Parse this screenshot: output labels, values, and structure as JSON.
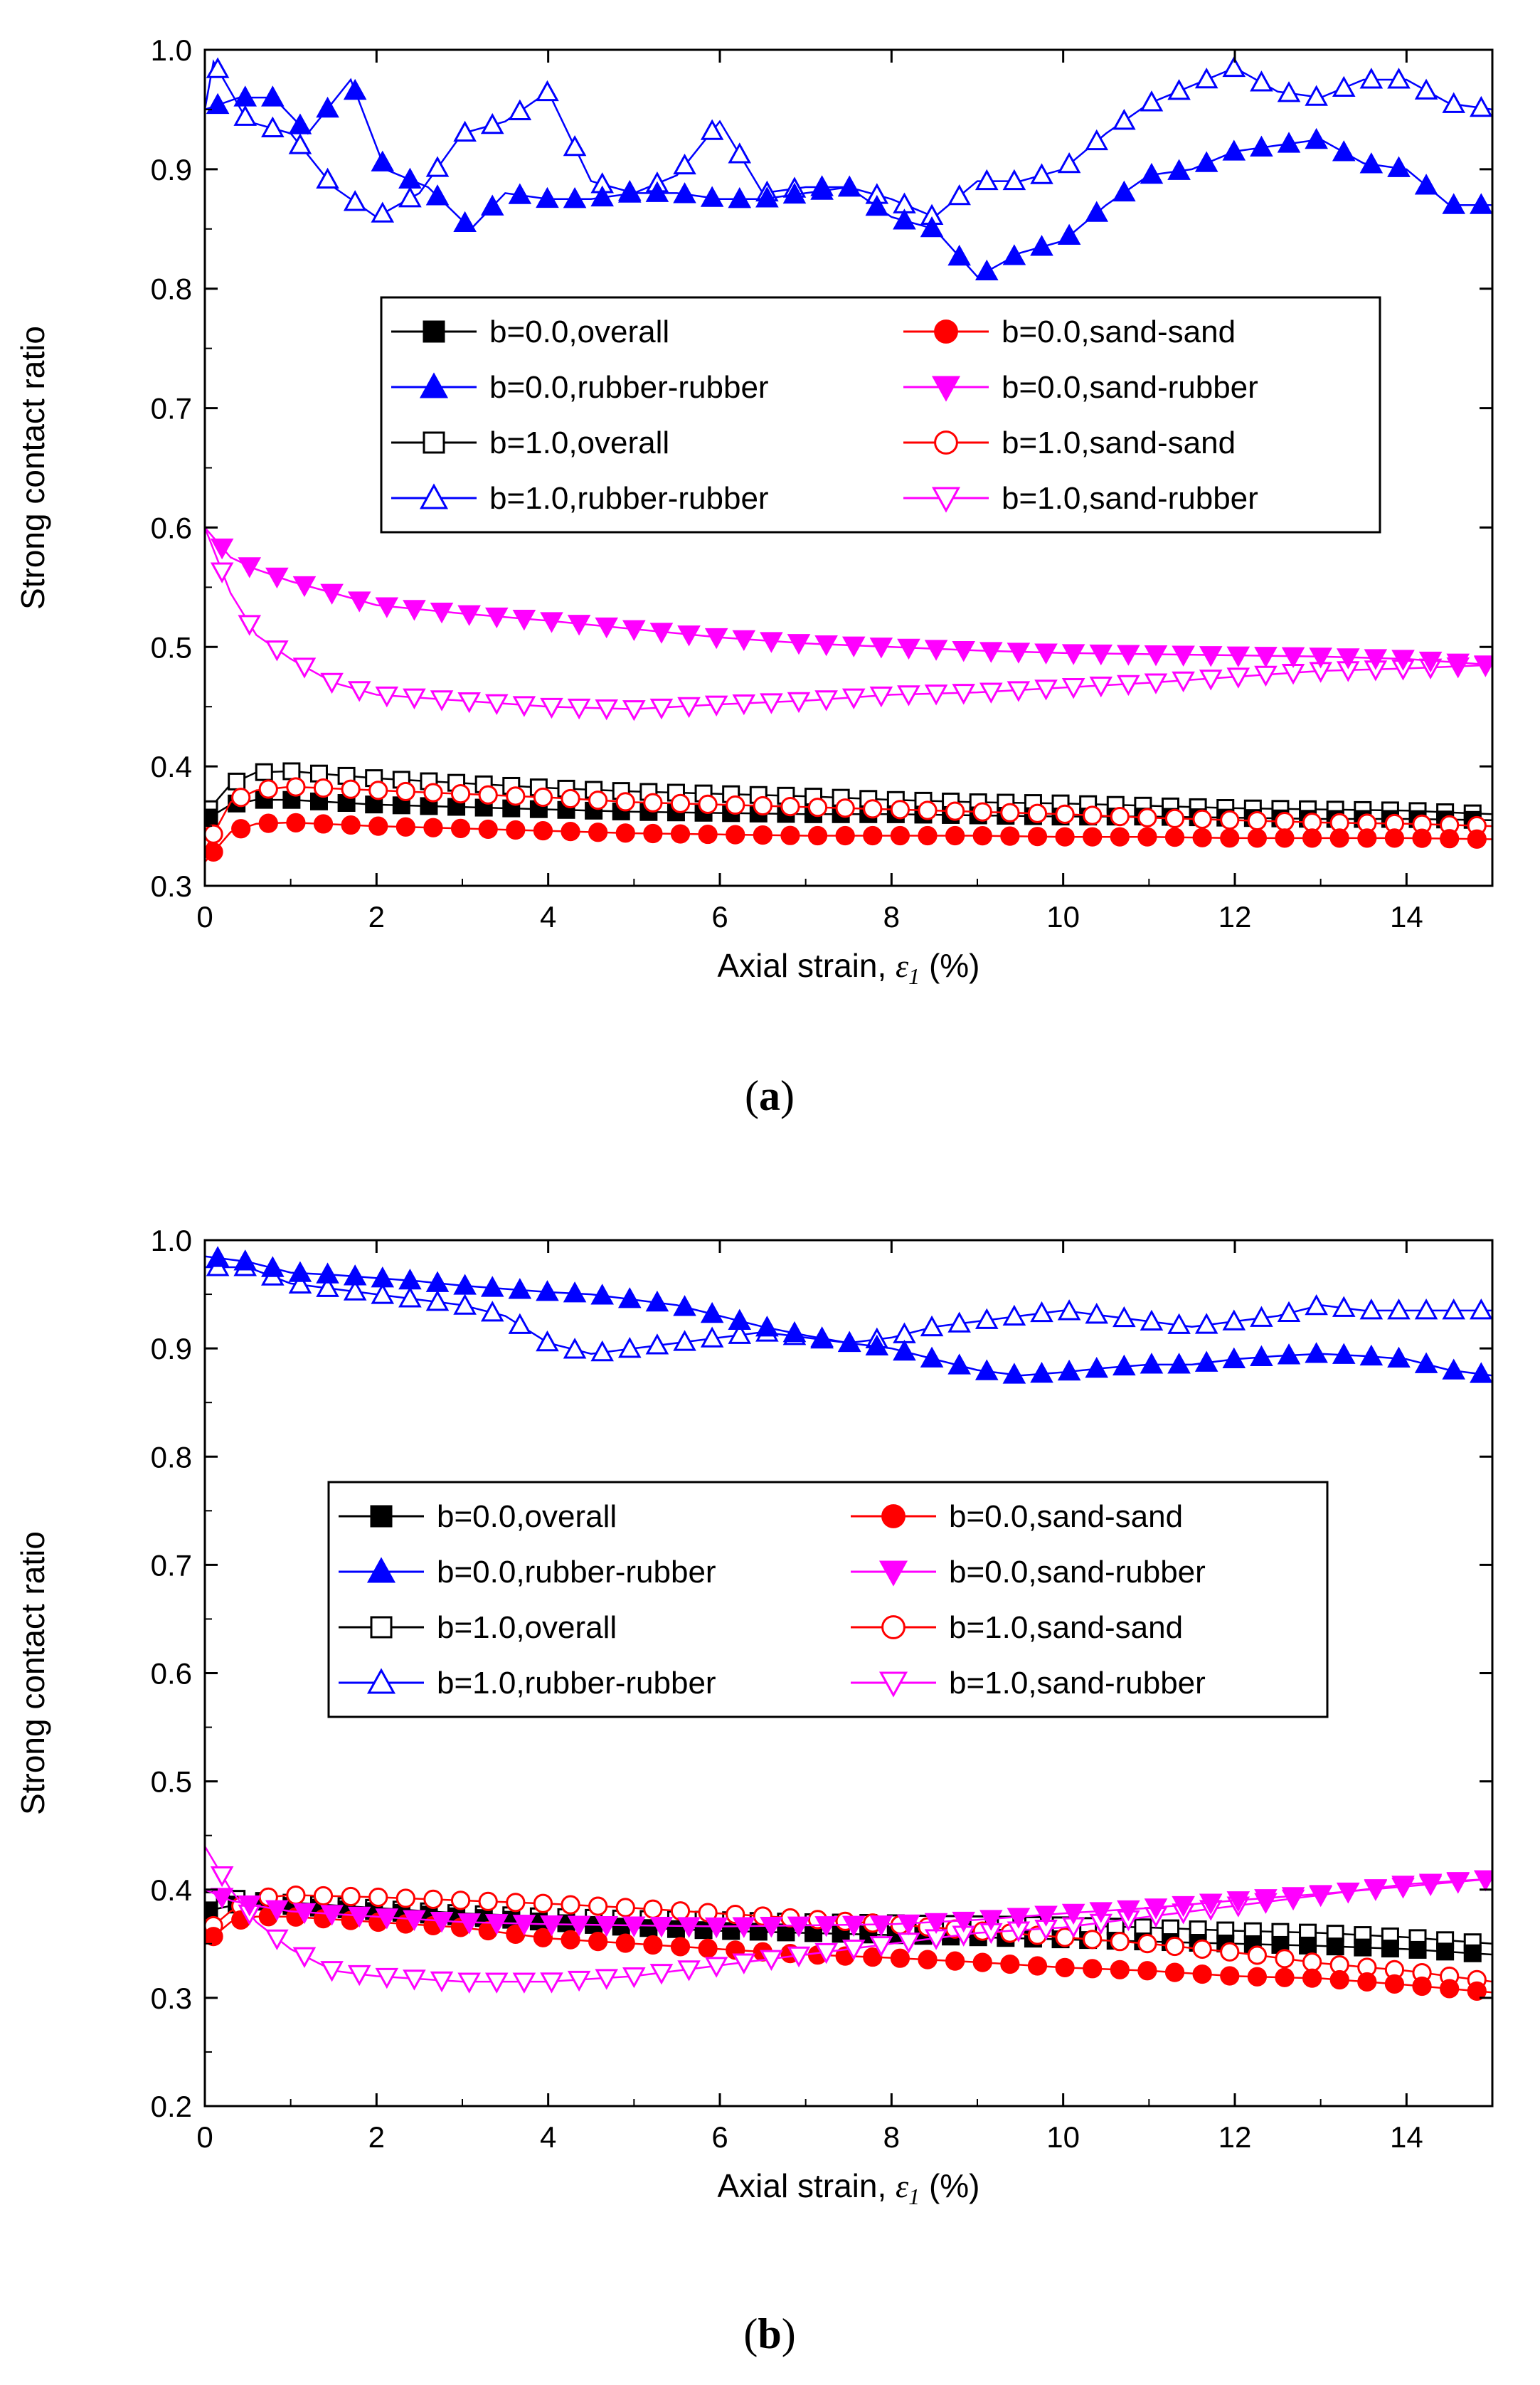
{
  "chart_data": [
    {
      "panel": "a",
      "type": "line",
      "xlabel": "Axial strain, ε1 (%)",
      "xlabel_parts": {
        "text": "Axial strain, ",
        "symbol": "ε",
        "subscript": "1",
        "unit": " (%)"
      },
      "ylabel": "Strong contact ratio",
      "xlim": [
        0,
        15
      ],
      "ylim": [
        0.3,
        1.0
      ],
      "xticks": [
        "0",
        "2",
        "4",
        "6",
        "8",
        "10",
        "12",
        "14"
      ],
      "yticks": [
        "0.3",
        "0.4",
        "0.5",
        "0.6",
        "0.7",
        "0.8",
        "0.9",
        "1.0"
      ],
      "legend_position": "center",
      "series": [
        {
          "name": "b=0.0,overall",
          "color": "#000000",
          "marker": "square",
          "filled": true,
          "x": [
            0,
            0.3,
            0.6,
            1,
            2,
            3,
            4,
            5,
            6,
            7,
            8,
            9,
            10,
            11,
            12,
            13,
            14,
            15
          ],
          "y": [
            0.355,
            0.368,
            0.372,
            0.372,
            0.368,
            0.366,
            0.364,
            0.362,
            0.361,
            0.36,
            0.36,
            0.359,
            0.358,
            0.358,
            0.357,
            0.356,
            0.356,
            0.355
          ]
        },
        {
          "name": "b=0.0,sand-sand",
          "color": "#ff0000",
          "marker": "circle",
          "filled": true,
          "x": [
            0,
            0.3,
            0.6,
            1,
            2,
            3,
            4,
            5,
            6,
            7,
            8,
            9,
            10,
            11,
            12,
            13,
            14,
            15
          ],
          "y": [
            0.32,
            0.345,
            0.352,
            0.353,
            0.35,
            0.348,
            0.346,
            0.344,
            0.343,
            0.342,
            0.342,
            0.342,
            0.341,
            0.341,
            0.34,
            0.34,
            0.34,
            0.339
          ]
        },
        {
          "name": "b=0.0,rubber-rubber",
          "color": "#0000ff",
          "marker": "triangle-up",
          "filled": true,
          "x": [
            0,
            0.4,
            0.8,
            1.2,
            1.7,
            2.1,
            2.6,
            3.1,
            3.5,
            4,
            4.5,
            5,
            5.5,
            6,
            6.5,
            7,
            7.5,
            8,
            8.5,
            9,
            9.5,
            10,
            10.5,
            11,
            11.5,
            12,
            12.5,
            13,
            13.5,
            14,
            14.5,
            15
          ],
          "y": [
            0.95,
            0.96,
            0.96,
            0.93,
            0.975,
            0.9,
            0.885,
            0.85,
            0.88,
            0.875,
            0.875,
            0.88,
            0.88,
            0.875,
            0.875,
            0.88,
            0.885,
            0.86,
            0.85,
            0.81,
            0.83,
            0.84,
            0.87,
            0.895,
            0.9,
            0.915,
            0.92,
            0.925,
            0.905,
            0.9,
            0.87,
            0.87
          ]
        },
        {
          "name": "b=0.0,sand-rubber",
          "color": "#ff00ff",
          "marker": "triangle-down",
          "filled": true,
          "x": [
            0,
            0.3,
            0.6,
            1,
            1.5,
            2,
            3,
            4,
            5,
            6,
            7,
            8,
            9,
            10,
            11,
            12,
            13,
            14,
            15
          ],
          "y": [
            0.6,
            0.575,
            0.565,
            0.555,
            0.545,
            0.535,
            0.528,
            0.522,
            0.515,
            0.508,
            0.503,
            0.5,
            0.497,
            0.495,
            0.494,
            0.493,
            0.492,
            0.49,
            0.485
          ]
        },
        {
          "name": "b=1.0,overall",
          "color": "#000000",
          "marker": "square",
          "filled": false,
          "x": [
            0,
            0.3,
            0.6,
            1,
            2,
            3,
            4,
            5,
            6,
            7,
            8,
            9,
            10,
            11,
            12,
            13,
            14,
            15
          ],
          "y": [
            0.36,
            0.385,
            0.395,
            0.396,
            0.39,
            0.386,
            0.382,
            0.379,
            0.377,
            0.375,
            0.372,
            0.37,
            0.369,
            0.367,
            0.365,
            0.364,
            0.363,
            0.36
          ]
        },
        {
          "name": "b=1.0,sand-sand",
          "color": "#ff0000",
          "marker": "circle",
          "filled": false,
          "x": [
            0,
            0.3,
            0.6,
            1,
            2,
            3,
            4,
            5,
            6,
            7,
            8,
            9,
            10,
            11,
            12,
            13,
            14,
            15
          ],
          "y": [
            0.33,
            0.37,
            0.38,
            0.383,
            0.38,
            0.377,
            0.374,
            0.37,
            0.368,
            0.366,
            0.364,
            0.362,
            0.36,
            0.357,
            0.355,
            0.353,
            0.352,
            0.35
          ]
        },
        {
          "name": "b=1.0,rubber-rubber",
          "color": "#0000ff",
          "marker": "triangle-up",
          "filled": false,
          "x": [
            0,
            0.1,
            0.5,
            1,
            1.5,
            2,
            2.5,
            3,
            3.5,
            4,
            4.5,
            5,
            5.5,
            6,
            6.5,
            7,
            7.5,
            8,
            8.5,
            9,
            9.5,
            10,
            10.5,
            11,
            11.5,
            12,
            12.5,
            13,
            13.5,
            14,
            14.5,
            15
          ],
          "y": [
            0.95,
            0.99,
            0.94,
            0.93,
            0.885,
            0.86,
            0.88,
            0.93,
            0.94,
            0.965,
            0.89,
            0.88,
            0.895,
            0.94,
            0.88,
            0.885,
            0.885,
            0.875,
            0.86,
            0.89,
            0.89,
            0.9,
            0.93,
            0.955,
            0.97,
            0.985,
            0.965,
            0.96,
            0.975,
            0.975,
            0.955,
            0.95
          ]
        },
        {
          "name": "b=1.0,sand-rubber",
          "color": "#ff00ff",
          "marker": "triangle-down",
          "filled": false,
          "x": [
            0,
            0.3,
            0.6,
            1,
            1.5,
            2,
            3,
            4,
            5,
            6,
            7,
            8,
            9,
            10,
            11,
            12,
            13,
            14,
            15
          ],
          "y": [
            0.6,
            0.545,
            0.51,
            0.49,
            0.47,
            0.46,
            0.455,
            0.45,
            0.448,
            0.452,
            0.455,
            0.46,
            0.462,
            0.466,
            0.47,
            0.475,
            0.48,
            0.482,
            0.485
          ]
        }
      ]
    },
    {
      "panel": "b",
      "type": "line",
      "xlabel": "Axial strain, ε1 (%)",
      "xlabel_parts": {
        "text": "Axial strain, ",
        "symbol": "ε",
        "subscript": "1",
        "unit": " (%)"
      },
      "ylabel": "Strong contact ratio",
      "xlim": [
        0,
        15
      ],
      "ylim": [
        0.2,
        1.0
      ],
      "xticks": [
        "0",
        "2",
        "4",
        "6",
        "8",
        "10",
        "12",
        "14"
      ],
      "yticks": [
        "0.2",
        "0.3",
        "0.4",
        "0.5",
        "0.6",
        "0.7",
        "0.8",
        "0.9",
        "1.0"
      ],
      "legend_position": "center",
      "series": [
        {
          "name": "b=0.0,overall",
          "color": "#000000",
          "marker": "square",
          "filled": true,
          "x": [
            0,
            0.3,
            0.6,
            1,
            2,
            3,
            4,
            5,
            6,
            7,
            8,
            9,
            10,
            11,
            12,
            13,
            14,
            15
          ],
          "y": [
            0.38,
            0.385,
            0.39,
            0.385,
            0.38,
            0.375,
            0.37,
            0.365,
            0.362,
            0.36,
            0.358,
            0.356,
            0.354,
            0.352,
            0.35,
            0.348,
            0.345,
            0.34
          ]
        },
        {
          "name": "b=0.0,sand-sand",
          "color": "#ff0000",
          "marker": "circle",
          "filled": true,
          "x": [
            0,
            0.3,
            0.6,
            1,
            2,
            3,
            4,
            5,
            6,
            7,
            8,
            9,
            10,
            11,
            12,
            13,
            14,
            15
          ],
          "y": [
            0.35,
            0.37,
            0.375,
            0.375,
            0.37,
            0.365,
            0.355,
            0.35,
            0.345,
            0.34,
            0.337,
            0.333,
            0.328,
            0.325,
            0.32,
            0.318,
            0.312,
            0.305
          ]
        },
        {
          "name": "b=0.0,rubber-rubber",
          "color": "#0000ff",
          "marker": "triangle-up",
          "filled": true,
          "x": [
            0,
            0.5,
            1,
            1.5,
            2,
            2.5,
            3,
            3.5,
            4,
            4.5,
            5,
            5.5,
            6,
            6.5,
            7,
            7.5,
            8,
            8.5,
            9,
            9.5,
            10,
            10.5,
            11,
            11.5,
            12,
            12.5,
            13,
            13.5,
            14,
            14.5,
            15
          ],
          "y": [
            0.985,
            0.98,
            0.97,
            0.968,
            0.965,
            0.962,
            0.958,
            0.955,
            0.952,
            0.95,
            0.945,
            0.94,
            0.93,
            0.92,
            0.912,
            0.905,
            0.9,
            0.89,
            0.88,
            0.875,
            0.878,
            0.882,
            0.885,
            0.885,
            0.89,
            0.893,
            0.895,
            0.893,
            0.89,
            0.88,
            0.875
          ]
        },
        {
          "name": "b=0.0,sand-rubber",
          "color": "#ff00ff",
          "marker": "triangle-down",
          "filled": true,
          "x": [
            0,
            0.3,
            0.6,
            1,
            2,
            3,
            4,
            5,
            6,
            7,
            8,
            9,
            10,
            11,
            12,
            13,
            14,
            15
          ],
          "y": [
            0.4,
            0.39,
            0.385,
            0.38,
            0.375,
            0.37,
            0.368,
            0.367,
            0.366,
            0.367,
            0.368,
            0.372,
            0.378,
            0.383,
            0.39,
            0.396,
            0.403,
            0.41
          ]
        },
        {
          "name": "b=1.0,overall",
          "color": "#000000",
          "marker": "square",
          "filled": false,
          "x": [
            0,
            0.3,
            0.6,
            1,
            2,
            3,
            4,
            5,
            6,
            7,
            8,
            9,
            10,
            11,
            12,
            13,
            14,
            15
          ],
          "y": [
            0.39,
            0.392,
            0.39,
            0.388,
            0.383,
            0.378,
            0.375,
            0.373,
            0.372,
            0.37,
            0.369,
            0.368,
            0.367,
            0.365,
            0.362,
            0.36,
            0.356,
            0.35
          ]
        },
        {
          "name": "b=1.0,sand-sand",
          "color": "#ff0000",
          "marker": "circle",
          "filled": false,
          "x": [
            0,
            0.3,
            0.6,
            1,
            2,
            3,
            4,
            5,
            6,
            7,
            8,
            9,
            10,
            11,
            12,
            13,
            14,
            15
          ],
          "y": [
            0.36,
            0.38,
            0.392,
            0.395,
            0.393,
            0.39,
            0.387,
            0.383,
            0.378,
            0.373,
            0.368,
            0.362,
            0.356,
            0.35,
            0.342,
            0.332,
            0.325,
            0.315
          ]
        },
        {
          "name": "b=1.0,rubber-rubber",
          "color": "#0000ff",
          "marker": "triangle-up",
          "filled": false,
          "x": [
            0,
            0.5,
            1,
            1.5,
            2,
            2.5,
            3,
            3.5,
            4,
            4.5,
            5,
            5.5,
            6,
            6.5,
            7,
            7.5,
            8,
            8.5,
            9,
            9.5,
            10,
            10.5,
            11,
            11.5,
            12,
            12.5,
            13,
            13.5,
            14,
            14.5,
            15
          ],
          "y": [
            0.975,
            0.975,
            0.96,
            0.955,
            0.95,
            0.945,
            0.94,
            0.93,
            0.905,
            0.895,
            0.9,
            0.905,
            0.91,
            0.915,
            0.91,
            0.905,
            0.91,
            0.92,
            0.925,
            0.93,
            0.935,
            0.93,
            0.925,
            0.92,
            0.925,
            0.93,
            0.94,
            0.935,
            0.935,
            0.935,
            0.935
          ]
        },
        {
          "name": "b=1.0,sand-rubber",
          "color": "#ff00ff",
          "marker": "triangle-down",
          "filled": false,
          "x": [
            0,
            0.3,
            0.6,
            1,
            1.5,
            2,
            3,
            4,
            5,
            6,
            7,
            8,
            9,
            10,
            11,
            12,
            13,
            14,
            15
          ],
          "y": [
            0.44,
            0.4,
            0.37,
            0.345,
            0.325,
            0.32,
            0.315,
            0.315,
            0.32,
            0.33,
            0.34,
            0.35,
            0.36,
            0.365,
            0.375,
            0.385,
            0.395,
            0.405,
            0.41
          ]
        }
      ]
    }
  ],
  "captions": {
    "a_open": "(",
    "a_letter": "a",
    "a_close": ")",
    "b_open": "(",
    "b_letter": "b",
    "b_close": ")"
  }
}
